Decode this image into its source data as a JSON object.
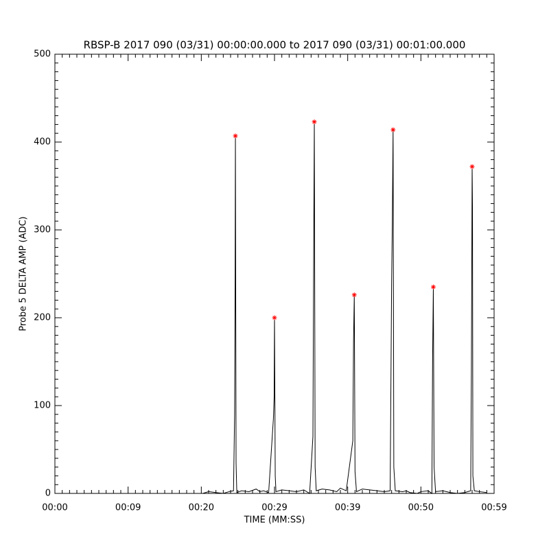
{
  "chart_data": {
    "type": "line",
    "title": "RBSP-B 2017 090 (03/31) 00:00:00.000 to 2017 090 (03/31) 00:01:00.000",
    "x_label": "TIME (MM:SS)",
    "y_label": "Probe 5 DELTA AMP (ADC)",
    "xlim": [
      0,
      60
    ],
    "ylim": [
      0,
      500
    ],
    "xticks": [
      {
        "value": 0,
        "label": "00:00"
      },
      {
        "value": 10,
        "label": "00:09"
      },
      {
        "value": 20,
        "label": "00:20"
      },
      {
        "value": 30,
        "label": "00:29"
      },
      {
        "value": 40,
        "label": "00:39"
      },
      {
        "value": 50,
        "label": "00:50"
      },
      {
        "value": 60,
        "label": "00:59"
      }
    ],
    "yticks": [
      0,
      100,
      200,
      300,
      400,
      500
    ],
    "series": [
      {
        "color": "#000000",
        "x": [
          0,
          20.2,
          21,
          22,
          23,
          23.8,
          24.4,
          24.55,
          24.62,
          24.66,
          24.75,
          24.85,
          25.5,
          26.5,
          27.5,
          28,
          28.5,
          29.2,
          29.85,
          29.95,
          30.0,
          30.1,
          30.2,
          31,
          32,
          33,
          34,
          34.8,
          35.25,
          35.35,
          35.44,
          35.55,
          35.7,
          36.5,
          37.5,
          38.5,
          39,
          39.8,
          40.7,
          40.8,
          40.9,
          41.0,
          41.2,
          42,
          43,
          44,
          45,
          45.8,
          46.0,
          46.1,
          46.2,
          46.3,
          46.5,
          47.5,
          48,
          48.5,
          49.5,
          50,
          51,
          51.5,
          51.6,
          51.7,
          51.8,
          52,
          53,
          54,
          55,
          56,
          56.8,
          56.9,
          57.0,
          57.05,
          57.1,
          57.3,
          58,
          59
        ],
        "values": [
          0,
          0,
          2,
          1,
          0,
          2,
          3,
          90,
          240,
          407,
          35,
          1,
          3,
          2,
          5,
          2,
          3,
          1,
          85,
          110,
          200,
          20,
          2,
          4,
          3,
          2,
          4,
          0,
          65,
          270,
          423,
          30,
          3,
          5,
          4,
          2,
          6,
          3,
          60,
          175,
          226,
          25,
          2,
          5,
          4,
          3,
          2,
          3,
          240,
          310,
          414,
          30,
          3,
          2,
          3,
          1,
          0,
          2,
          3,
          0,
          155,
          235,
          30,
          2,
          3,
          1,
          0,
          1,
          3,
          140,
          372,
          325,
          20,
          3,
          2,
          1
        ]
      },
      {
        "color": "#ff0000",
        "marker": "*",
        "x": [
          24.66,
          30.0,
          35.44,
          40.9,
          46.2,
          51.7,
          57.0
        ],
        "values": [
          407,
          200,
          423,
          226,
          414,
          235,
          372
        ]
      }
    ]
  }
}
